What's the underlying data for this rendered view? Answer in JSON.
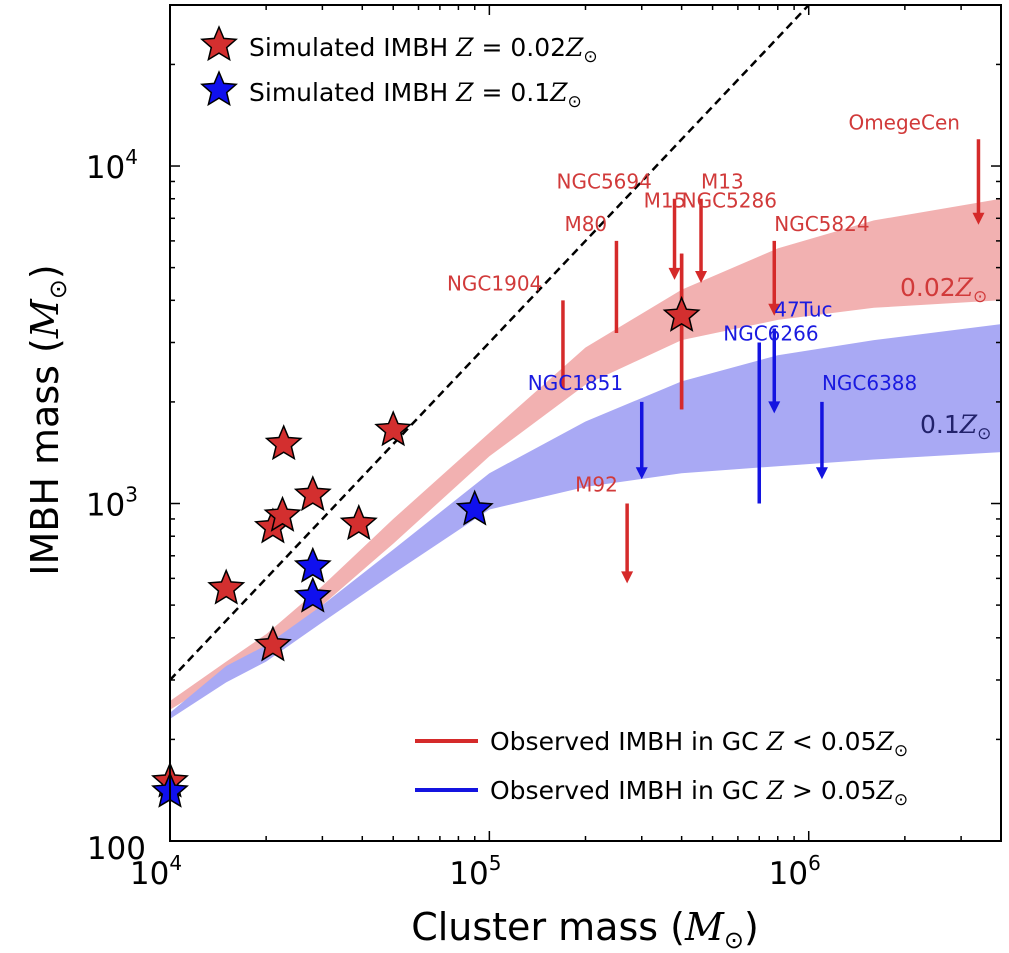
{
  "chart_data": {
    "type": "scatter",
    "xlabel_text": "Cluster mass (",
    "xlabel_var": "M",
    "xlabel_sub": "⊙",
    "xlabel_close": ")",
    "ylabel_text": "IMBH mass (",
    "ylabel_var": "M",
    "ylabel_sub": "⊙",
    "ylabel_close": ")",
    "xscale": "log",
    "yscale": "log",
    "xlim": [
      10000,
      4000000
    ],
    "ylim": [
      100,
      30000
    ],
    "x_ticks": [
      {
        "value": 10000,
        "base": "10",
        "exp": "4"
      },
      {
        "value": 100000,
        "base": "10",
        "exp": "5"
      },
      {
        "value": 1000000,
        "base": "10",
        "exp": "6"
      }
    ],
    "y_ticks": [
      {
        "value": 100,
        "label": "100"
      },
      {
        "value": 1000,
        "base": "10",
        "exp": "3"
      },
      {
        "value": 10000,
        "base": "10",
        "exp": "4"
      }
    ],
    "colors": {
      "simulated_red": "#d32f2f",
      "simulated_blue": "#1010ee",
      "observed_red": "#d52a2a",
      "observed_blue": "#1414e0",
      "band_red": "#f2b1b1",
      "band_blue": "#a9a9f4",
      "obs_red_text": "#d13a3a",
      "obs_blue_text": "#1a1ae0"
    },
    "legend_top": [
      {
        "name_text": "Simulated IMBH ",
        "z_value": "0.02",
        "marker_color": "#d32f2f"
      },
      {
        "name_text": "Simulated IMBH ",
        "z_value": "0.1",
        "marker_color": "#1010ee"
      }
    ],
    "legend_bottom": [
      {
        "name_text": "Observed IMBH in GC ",
        "relation": "<",
        "z_value": "0.05",
        "line_color": "#d52a2a"
      },
      {
        "name_text": "Observed IMBH in GC ",
        "relation": ">",
        "z_value": "0.05",
        "line_color": "#1414e0"
      }
    ],
    "legend_z_symbol": "Z",
    "legend_z_sym2": "Z",
    "legend_sun": "⊙",
    "series": [
      {
        "name": "Simulated IMBH Z = 0.02Z⊙",
        "color": "#d32f2f",
        "points": [
          {
            "x": 10000,
            "y": 150
          },
          {
            "x": 15000,
            "y": 560
          },
          {
            "x": 21000,
            "y": 380
          },
          {
            "x": 21000,
            "y": 850
          },
          {
            "x": 22500,
            "y": 920
          },
          {
            "x": 22700,
            "y": 1500
          },
          {
            "x": 28000,
            "y": 1060
          },
          {
            "x": 39000,
            "y": 870
          },
          {
            "x": 50000,
            "y": 1650
          },
          {
            "x": 400000,
            "y": 3600
          }
        ]
      },
      {
        "name": "Simulated IMBH Z = 0.1Z⊙",
        "color": "#1010ee",
        "points": [
          {
            "x": 10000,
            "y": 140
          },
          {
            "x": 28000,
            "y": 650
          },
          {
            "x": 28000,
            "y": 530
          },
          {
            "x": 90000,
            "y": 960
          }
        ]
      }
    ],
    "observed": [
      {
        "name": "OmegeCen",
        "x": 3400000,
        "y_top": 12000,
        "y_bottom": 6700,
        "arrow": true,
        "color": "red"
      },
      {
        "name": "NGC5694",
        "x": 380000,
        "y_top": 8000,
        "y_bottom": 4600,
        "arrow": true,
        "color": "red"
      },
      {
        "name": "M13",
        "x": 460000,
        "y_top": 8000,
        "y_bottom": 4500,
        "arrow": true,
        "color": "red"
      },
      {
        "name": "M80",
        "x": 250000,
        "y_top": 6000,
        "y_bottom": 3200,
        "arrow": false,
        "color": "red"
      },
      {
        "name": "M15",
        "x": 400000,
        "y_top": 5500,
        "y_bottom": 1900,
        "arrow": false,
        "color": "red"
      },
      {
        "name": "NGC5286",
        "x": 400000,
        "y_top": 5500,
        "y_bottom": 1900,
        "arrow": false,
        "color": "red"
      },
      {
        "name": "NGC5824",
        "x": 780000,
        "y_top": 6000,
        "y_bottom": 3600,
        "arrow": true,
        "color": "red"
      },
      {
        "name": "NGC1904",
        "x": 170000,
        "y_top": 4000,
        "y_bottom": 2200,
        "arrow": false,
        "color": "red"
      },
      {
        "name": "M92",
        "x": 270000,
        "y_top": 1000,
        "y_bottom": 580,
        "arrow": true,
        "color": "red"
      },
      {
        "name": "47Tuc",
        "x": 780000,
        "y_top": 3300,
        "y_bottom": 1850,
        "arrow": true,
        "color": "blue"
      },
      {
        "name": "NGC6266",
        "x": 700000,
        "y_top": 3000,
        "y_bottom": 1000,
        "arrow": false,
        "color": "blue"
      },
      {
        "name": "NGC1851",
        "x": 300000,
        "y_top": 2000,
        "y_bottom": 1180,
        "arrow": true,
        "color": "blue"
      },
      {
        "name": "NGC6388",
        "x": 1100000,
        "y_top": 2000,
        "y_bottom": 1180,
        "arrow": true,
        "color": "blue"
      }
    ],
    "one_to_one_line": {
      "from": {
        "x": 10000,
        "y": 300
      },
      "to": {
        "x": 1000000,
        "y": 30000
      }
    },
    "bands": [
      {
        "label_value": "0.02",
        "label_z": "Z",
        "label_sun": "⊙",
        "color": "#f2b1b1",
        "x": [
          10000,
          15000,
          20000,
          30000,
          50000,
          100000,
          200000,
          400000,
          800000,
          1600000,
          4000000
        ],
        "upper": [
          260,
          340,
          410,
          570,
          900,
          1620,
          2900,
          4300,
          5700,
          6900,
          8000
        ],
        "lower": [
          245,
          310,
          370,
          500,
          760,
          1380,
          2250,
          3050,
          3500,
          3800,
          4000
        ]
      },
      {
        "label_value": "0.1",
        "label_z": "Z",
        "label_sun": "⊙",
        "color": "#a9a9f4",
        "x": [
          10000,
          15000,
          20000,
          30000,
          50000,
          100000,
          200000,
          400000,
          800000,
          1600000,
          4000000
        ],
        "upper": [
          240,
          330,
          380,
          500,
          730,
          1230,
          1750,
          2300,
          2750,
          3050,
          3400
        ],
        "lower": [
          230,
          295,
          340,
          445,
          620,
          960,
          1120,
          1230,
          1290,
          1350,
          1420
        ]
      }
    ]
  }
}
